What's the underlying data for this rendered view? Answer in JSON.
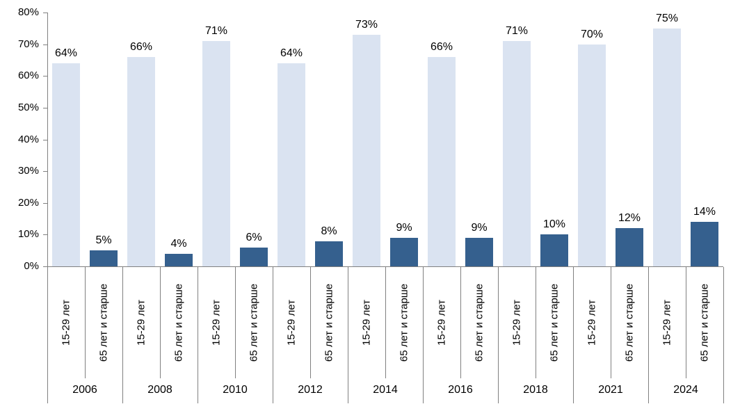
{
  "chart_data": {
    "type": "bar",
    "title": "",
    "categories": [
      "2006",
      "2008",
      "2010",
      "2012",
      "2014",
      "2016",
      "2018",
      "2021",
      "2024"
    ],
    "subcategories": [
      "15-29 лет",
      "65 лет и старше"
    ],
    "series": [
      {
        "name": "15-29 лет",
        "color": "#dae3f1",
        "values": [
          64,
          66,
          71,
          64,
          73,
          66,
          71,
          70,
          75
        ]
      },
      {
        "name": "65 лет и старше",
        "color": "#35608e",
        "values": [
          5,
          4,
          6,
          8,
          9,
          9,
          10,
          12,
          14
        ]
      }
    ],
    "value_suffix": "%",
    "data_labels": true,
    "y_axis": {
      "min": 0,
      "max": 80,
      "step": 10,
      "tick_labels": [
        "0%",
        "10%",
        "20%",
        "30%",
        "40%",
        "50%",
        "60%",
        "70%",
        "80%"
      ]
    },
    "grid": false,
    "legend": "none",
    "colors": {
      "axis_line": "#808080",
      "text": "#000000",
      "background": "#ffffff"
    }
  }
}
